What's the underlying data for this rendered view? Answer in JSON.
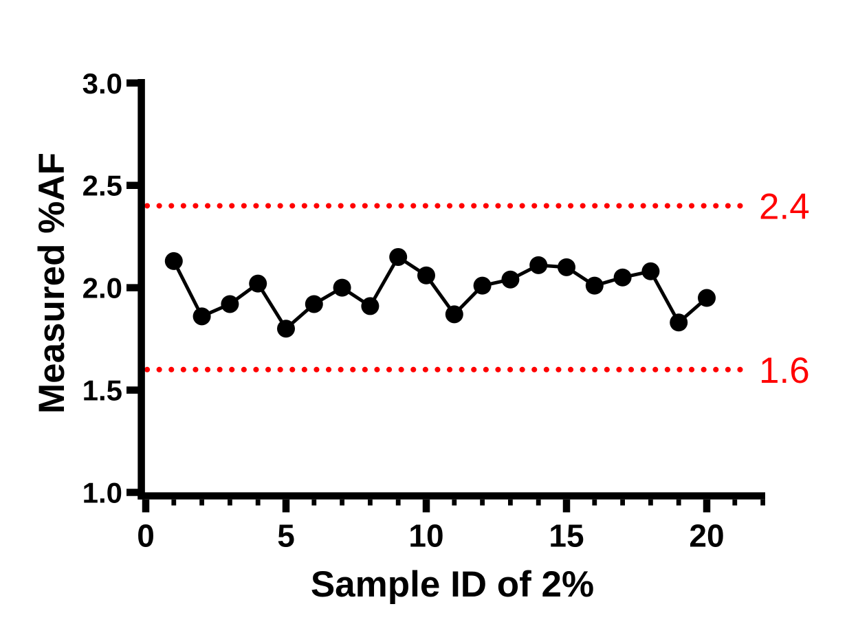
{
  "chart_data": {
    "type": "line",
    "title": "",
    "xlabel": "Sample ID of 2%",
    "ylabel": "Measured %AF",
    "x": [
      1,
      2,
      3,
      4,
      5,
      6,
      7,
      8,
      9,
      10,
      11,
      12,
      13,
      14,
      15,
      16,
      17,
      18,
      19,
      20
    ],
    "values": [
      2.13,
      1.86,
      1.92,
      2.02,
      1.8,
      1.92,
      2.0,
      1.91,
      2.15,
      2.06,
      1.87,
      2.01,
      2.04,
      2.11,
      2.1,
      2.01,
      2.05,
      2.08,
      1.83,
      1.95
    ],
    "series_name": "Measured %AF",
    "xlim": [
      0,
      22
    ],
    "ylim": [
      1.0,
      3.0
    ],
    "x_major_ticks": [
      0,
      5,
      10,
      15,
      20
    ],
    "x_tick_labels": [
      "0",
      "5",
      "10",
      "15",
      "20"
    ],
    "x_minor_tick_min": 1,
    "x_minor_tick_max": 22,
    "x_minor_tick_step": 1,
    "y_ticks": [
      3.0,
      2.5,
      2.0,
      1.5,
      1.0
    ],
    "y_tick_labels": [
      "3.0",
      "2.5",
      "2.0",
      "1.5",
      "1.0"
    ],
    "grid": false,
    "legend": "none",
    "marker": "filled-circle",
    "reference_lines": [
      {
        "value": 2.4,
        "label": "2.4",
        "style": "dotted",
        "color": "#FF0000"
      },
      {
        "value": 1.6,
        "label": "1.6",
        "style": "dotted",
        "color": "#FF0000"
      }
    ],
    "colors": {
      "series": "#000000",
      "axis": "#000000",
      "reference": "#FF0000",
      "background": "#FFFFFF"
    }
  }
}
